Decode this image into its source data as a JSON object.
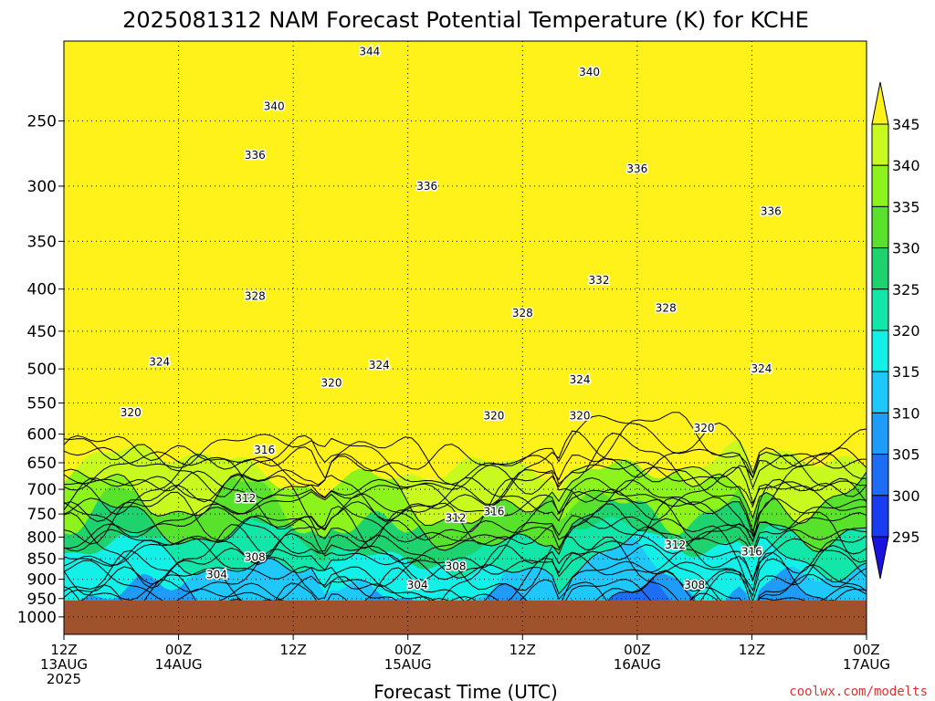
{
  "chart_data": {
    "type": "heatmap",
    "title": "2025081312 NAM Forecast Potential Temperature (K) for KCHE",
    "xlabel": "Forecast Time (UTC)",
    "ylabel": "",
    "y_scale": "pressure",
    "y_ticks": [
      250,
      300,
      350,
      400,
      450,
      500,
      550,
      600,
      650,
      700,
      750,
      800,
      850,
      900,
      950,
      1000
    ],
    "y_range_hpa": [
      200,
      1050
    ],
    "surface_hpa": 955,
    "x_ticks": [
      {
        "hour": 0,
        "line1": "12Z",
        "line2": "13AUG",
        "line3": "2025"
      },
      {
        "hour": 12,
        "line1": "00Z",
        "line2": "14AUG",
        "line3": ""
      },
      {
        "hour": 24,
        "line1": "12Z",
        "line2": "",
        "line3": ""
      },
      {
        "hour": 36,
        "line1": "00Z",
        "line2": "15AUG",
        "line3": ""
      },
      {
        "hour": 48,
        "line1": "12Z",
        "line2": "",
        "line3": ""
      },
      {
        "hour": 60,
        "line1": "00Z",
        "line2": "16AUG",
        "line3": ""
      },
      {
        "hour": 72,
        "line1": "12Z",
        "line2": "",
        "line3": ""
      },
      {
        "hour": 84,
        "line1": "00Z",
        "line2": "17AUG",
        "line3": ""
      }
    ],
    "x_range_hours": [
      0,
      84
    ],
    "colorbar": {
      "levels": [
        295,
        300,
        305,
        310,
        315,
        320,
        325,
        330,
        335,
        340,
        345
      ],
      "colors": [
        "#1a12e0",
        "#1a3cf0",
        "#1e6ef5",
        "#1e9cf8",
        "#1ec8fa",
        "#12f0e8",
        "#12e6a8",
        "#1ed26e",
        "#58e22c",
        "#8cf41c",
        "#c8fa20",
        "#fff21a"
      ],
      "extend": "both"
    },
    "grid": true,
    "contour_labels": [
      {
        "value": "344",
        "hour": 32.0,
        "p": 206
      },
      {
        "value": "340",
        "hour": 22.0,
        "p": 240
      },
      {
        "value": "340",
        "hour": 55.0,
        "p": 218
      },
      {
        "value": "336",
        "hour": 20.0,
        "p": 275
      },
      {
        "value": "336",
        "hour": 38.0,
        "p": 300
      },
      {
        "value": "336",
        "hour": 60.0,
        "p": 286
      },
      {
        "value": "336",
        "hour": 74.0,
        "p": 322
      },
      {
        "value": "332",
        "hour": 56.0,
        "p": 390
      },
      {
        "value": "328",
        "hour": 20.0,
        "p": 408
      },
      {
        "value": "328",
        "hour": 48.0,
        "p": 428
      },
      {
        "value": "328",
        "hour": 63.0,
        "p": 422
      },
      {
        "value": "324",
        "hour": 10.0,
        "p": 490
      },
      {
        "value": "324",
        "hour": 33.0,
        "p": 495
      },
      {
        "value": "324",
        "hour": 54.0,
        "p": 515
      },
      {
        "value": "324",
        "hour": 73.0,
        "p": 500
      },
      {
        "value": "320",
        "hour": 7.0,
        "p": 565
      },
      {
        "value": "320",
        "hour": 28.0,
        "p": 520
      },
      {
        "value": "320",
        "hour": 45.0,
        "p": 570
      },
      {
        "value": "320",
        "hour": 54.0,
        "p": 570
      },
      {
        "value": "320",
        "hour": 67.0,
        "p": 590
      },
      {
        "value": "316",
        "hour": 21.0,
        "p": 627
      },
      {
        "value": "316",
        "hour": 45.0,
        "p": 745
      },
      {
        "value": "316",
        "hour": 72.0,
        "p": 834
      },
      {
        "value": "312",
        "hour": 19.0,
        "p": 718
      },
      {
        "value": "312",
        "hour": 41.0,
        "p": 758
      },
      {
        "value": "312",
        "hour": 64.0,
        "p": 818
      },
      {
        "value": "308",
        "hour": 20.0,
        "p": 846
      },
      {
        "value": "308",
        "hour": 41.0,
        "p": 868
      },
      {
        "value": "308",
        "hour": 66.0,
        "p": 915
      },
      {
        "value": "304",
        "hour": 16.0,
        "p": 888
      },
      {
        "value": "304",
        "hour": 37.0,
        "p": 915
      }
    ]
  },
  "credit": "coolwx.com/modelts"
}
